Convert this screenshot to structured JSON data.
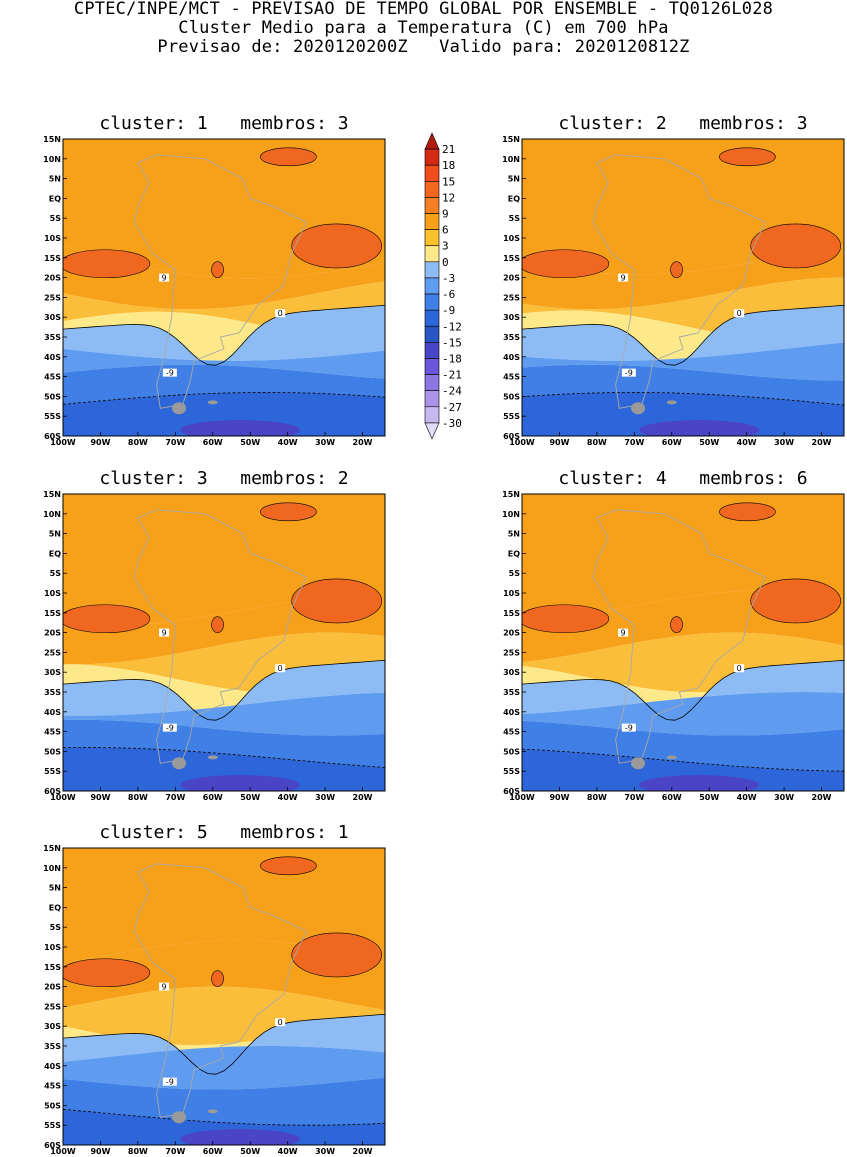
{
  "header": {
    "line1": "CPTEC/INPE/MCT - PREVISAO DE TEMPO GLOBAL POR ENSEMBLE - TQ0126L028",
    "line2": "Cluster Medio para a Temperatura (C) em 700 hPa",
    "line3": "Previsao de: 2020120200Z   Valido para: 2020120812Z"
  },
  "lat_labels": [
    "15N",
    "10N",
    "5N",
    "EQ",
    "5S",
    "10S",
    "15S",
    "20S",
    "25S",
    "30S",
    "35S",
    "40S",
    "45S",
    "50S",
    "55S",
    "60S"
  ],
  "lon_labels": [
    "100W",
    "90W",
    "80W",
    "70W",
    "60W",
    "50W",
    "40W",
    "30W",
    "20W"
  ],
  "colorbar": {
    "labels": [
      "21",
      "18",
      "15",
      "12",
      "9",
      "6",
      "3",
      "0",
      "-3",
      "-6",
      "-9",
      "-12",
      "-15",
      "-18",
      "-21",
      "-24",
      "-27",
      "-30"
    ],
    "colors": [
      "#b51a10",
      "#d42a14",
      "#ef4d1c",
      "#f2661e",
      "#f47e22",
      "#f7a019",
      "#fbc02e",
      "#fde98a",
      "#8dbcf5",
      "#5f9cf0",
      "#3f7fe6",
      "#2d66d8",
      "#2a56c4",
      "#4a44c6",
      "#6a56d8",
      "#8b76e2",
      "#a994ea",
      "#c7b8f2",
      "#e3dcf8"
    ]
  },
  "panels": [
    {
      "title": "cluster: 1   membros: 3",
      "labels": {
        "pos": "9",
        "zero": "0",
        "neg": "-9"
      }
    },
    {
      "title": "cluster: 2   membros: 3",
      "labels": {
        "pos": "9",
        "zero": "0",
        "neg": "-9"
      }
    },
    {
      "title": "cluster: 3   membros: 2",
      "labels": {
        "pos": "9",
        "zero": "0",
        "neg": "-9"
      }
    },
    {
      "title": "cluster: 4   membros: 6",
      "labels": {
        "pos": "9",
        "zero": "0",
        "neg": "-9"
      }
    },
    {
      "title": "cluster: 5   membros: 1",
      "labels": {
        "pos": "9",
        "zero": "0",
        "neg": "-9"
      }
    }
  ]
}
